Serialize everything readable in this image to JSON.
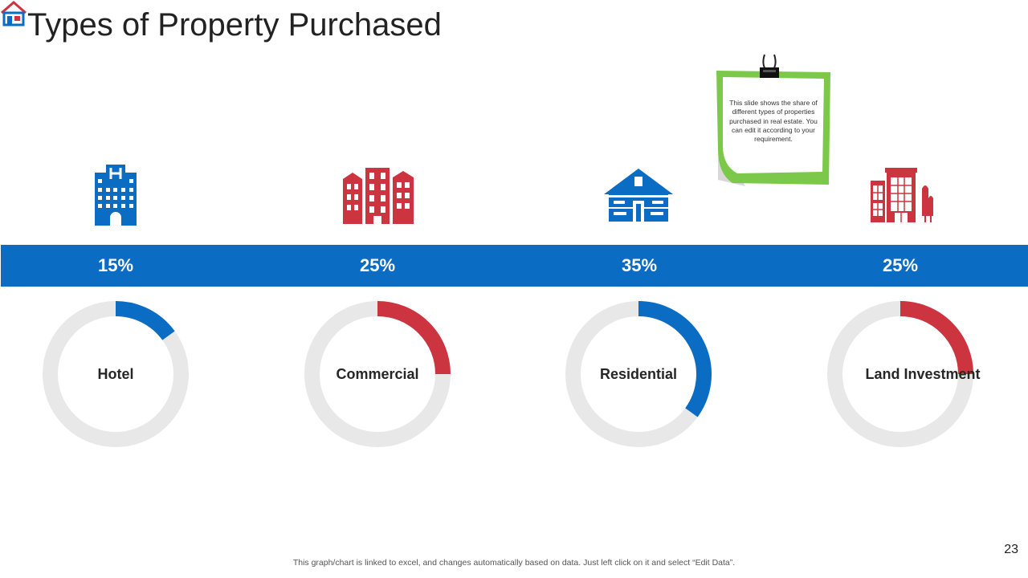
{
  "slide": {
    "title": "Types of Property Purchased",
    "page_number": "23",
    "footer": "This graph/chart is linked to excel, and changes automatically based on data. Just left click on it and select “Edit Data”.",
    "note": "This slide shows the share of different types of properties purchased in real estate. You can edit it according to your requirement."
  },
  "colors": {
    "blue": "#0B6CC4",
    "red": "#CC343F",
    "track": "#E8E8E8",
    "note_green": "#7CC84A"
  },
  "chart_data": {
    "type": "pie",
    "categories": [
      "Hotel",
      "Commercial",
      "Residential",
      "Land Investment"
    ],
    "values": [
      15,
      25,
      35,
      25
    ],
    "value_labels": [
      "15%",
      "25%",
      "35%",
      "25%"
    ],
    "unit": "%",
    "series_colors": [
      "#0B6CC4",
      "#CC343F",
      "#0B6CC4",
      "#CC343F"
    ],
    "icons": [
      "hotel-building-icon",
      "commercial-buildings-icon",
      "residential-house-icon",
      "land-investment-building-icon"
    ]
  }
}
